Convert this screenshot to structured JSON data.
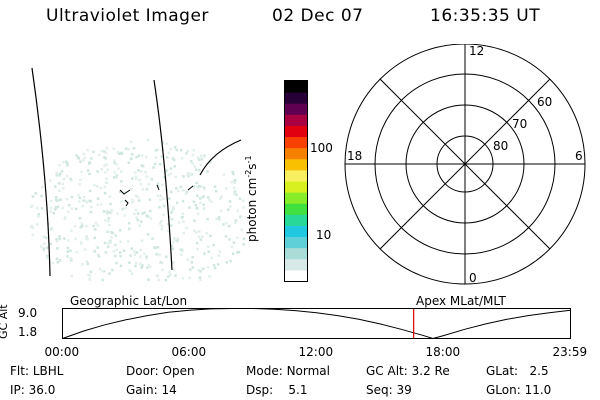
{
  "header": {
    "instrument": "Ultraviolet Imager",
    "date": "02 Dec 07",
    "time": "16:35:35 UT"
  },
  "colorbar": {
    "unit_prefix": "photon cm",
    "unit_sup1": "-2",
    "unit_mid": "s",
    "unit_sup2": "-1",
    "tick_labels": [
      "100",
      "10"
    ],
    "scale": "log",
    "colors": [
      "#ffffff",
      "#d8eae8",
      "#aadcd8",
      "#60d0d8",
      "#20c8e0",
      "#28d898",
      "#40e040",
      "#88ec28",
      "#d8f020",
      "#f8f060",
      "#f8c000",
      "#f88000",
      "#f84000",
      "#e00010",
      "#a80040",
      "#600050",
      "#280038",
      "#000000"
    ]
  },
  "polar": {
    "mlt_labels": {
      "top": "12",
      "left": "18",
      "right": "6",
      "bottom": "0"
    },
    "lat_labels": [
      "60",
      "70",
      "80"
    ]
  },
  "altitude_plot": {
    "left_title": "Geographic Lat/Lon",
    "right_title": "Apex MLat/MLT",
    "ylabel": "GC Alt",
    "ytick_max": "9.0",
    "ytick_min": "1.8",
    "xticks": [
      "00:00",
      "06:00",
      "12:00",
      "18:00",
      "23:59"
    ],
    "marker_color": "#e00000"
  },
  "chart_data": {
    "type": "line",
    "title": "",
    "xlabel": "",
    "ylabel": "GC Alt",
    "x_unit": "hours UT",
    "xlim": [
      0,
      24
    ],
    "ylim": [
      1.8,
      9.0
    ],
    "series": [
      {
        "x": [
          0,
          1,
          2,
          3,
          4,
          5,
          6,
          7,
          8,
          9,
          10,
          11,
          12,
          13,
          14,
          15,
          16,
          17,
          17.5,
          18,
          19,
          20,
          21,
          22,
          23,
          24
        ],
        "y": [
          1.8,
          3.6,
          5.1,
          6.3,
          7.3,
          8.1,
          8.6,
          8.9,
          9.0,
          9.0,
          8.8,
          8.5,
          8.0,
          7.3,
          6.4,
          5.3,
          4.0,
          2.6,
          1.8,
          2.5,
          4.0,
          5.3,
          6.4,
          7.3,
          8.0,
          8.6
        ]
      }
    ],
    "current_time_marker": 16.59
  },
  "status": {
    "filter": {
      "label": "Flt:",
      "value": "LBHL"
    },
    "door": {
      "label": "Door:",
      "value": "Open"
    },
    "mode": {
      "label": "Mode:",
      "value": "Normal"
    },
    "gc_alt": {
      "label": "GC Alt:",
      "value": "3.2 Re"
    },
    "glat": {
      "label": "GLat:",
      "value": "2.5"
    },
    "ip": {
      "label": "IP:",
      "value": "36.0"
    },
    "gain": {
      "label": "Gain:",
      "value": "14"
    },
    "dsp": {
      "label": "Dsp:",
      "value": "5.1"
    },
    "seq": {
      "label": "Seq:",
      "value": "39"
    },
    "glon": {
      "label": "GLon:",
      "value": "11.0"
    }
  }
}
